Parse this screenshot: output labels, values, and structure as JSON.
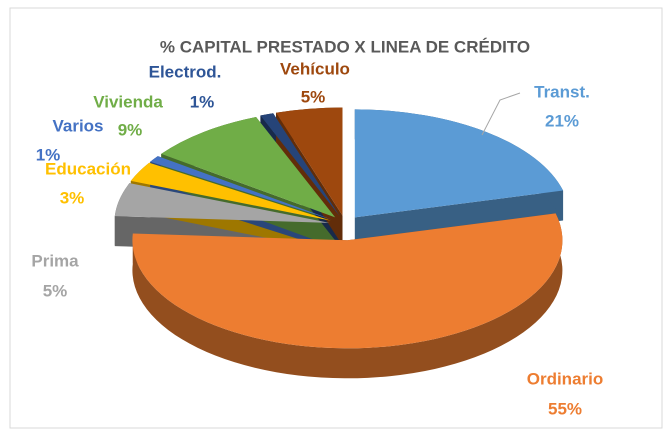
{
  "chart_data": {
    "type": "pie3d",
    "title": "% CAPITAL PRESTADO X LINEA DE CRÉDITO",
    "categories": [
      "Transt.",
      "Ordinario",
      "Prima",
      "Educación",
      "Varios",
      "Vivienda",
      "Electrod.",
      "Vehículo"
    ],
    "values": [
      21,
      55,
      5,
      3,
      1,
      9,
      1,
      5
    ],
    "value_labels": [
      "21%",
      "55%",
      "5%",
      "3%",
      "1%",
      "9%",
      "1%",
      "5%"
    ],
    "colors": [
      "#5b9bd5",
      "#ed7d31",
      "#a5a5a5",
      "#ffc000",
      "#4472c4",
      "#70ad47",
      "#264478",
      "#9e480e"
    ]
  }
}
